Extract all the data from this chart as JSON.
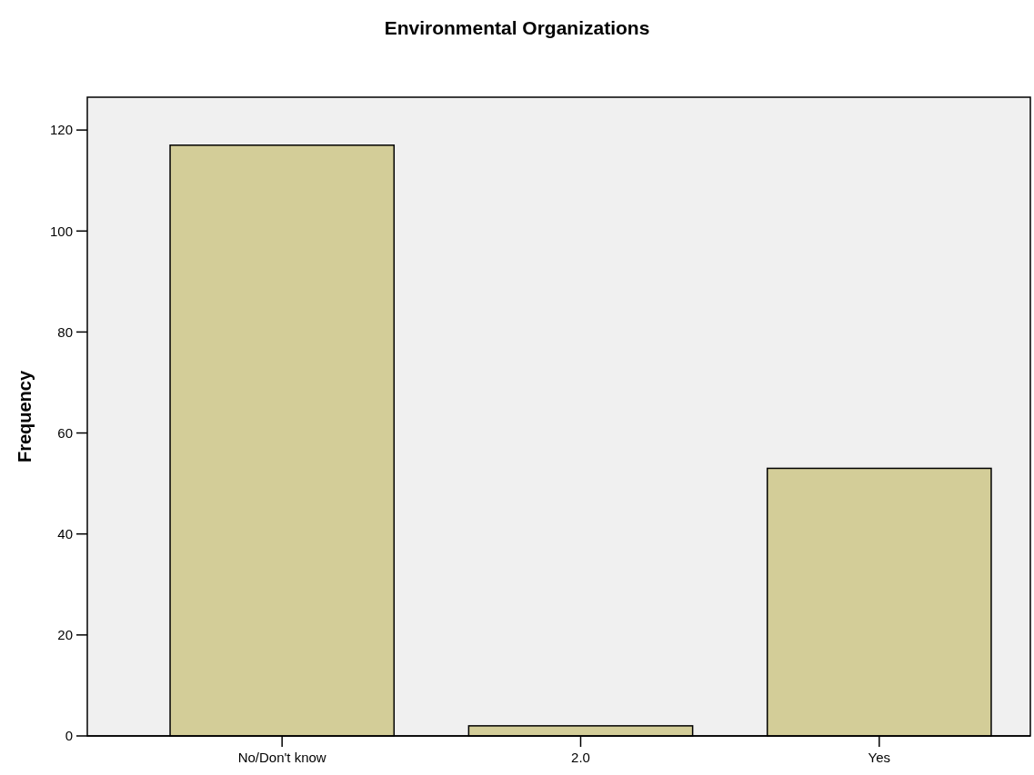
{
  "chart_data": {
    "type": "bar",
    "title": "Environmental Organizations",
    "ylabel": "Frequency",
    "categories": [
      "No/Don't know",
      "2.0",
      "Yes"
    ],
    "values": [
      117,
      2,
      53
    ],
    "color": "#d3cd98",
    "ylim": [
      0,
      126.5
    ],
    "yticks": [
      0,
      20,
      40,
      60,
      80,
      100,
      120
    ],
    "grid": false
  }
}
